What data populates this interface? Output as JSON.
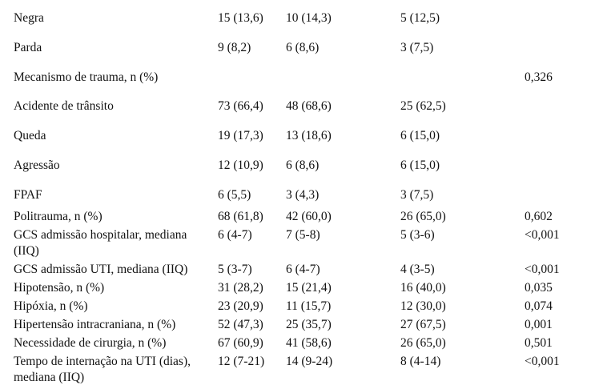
{
  "table": {
    "columns": [
      "row-label",
      "value-col1",
      "value-col2",
      "value-col3",
      "p-value"
    ],
    "rows": [
      {
        "label": "Negra",
        "values": [
          "15 (13,6)",
          "10 (14,3)",
          "5 (12,5)"
        ],
        "p": ""
      },
      {
        "label": "Parda",
        "values": [
          "9 (8,2)",
          "6 (8,6)",
          "3 (7,5)"
        ],
        "p": ""
      },
      {
        "label": "Mecanismo de trauma, n (%)",
        "values": [
          "",
          "",
          ""
        ],
        "p": "0,326"
      },
      {
        "label": "Acidente de trânsito",
        "values": [
          "73 (66,4)",
          "48 (68,6)",
          "25 (62,5)"
        ],
        "p": ""
      },
      {
        "label": "Queda",
        "values": [
          "19 (17,3)",
          "13 (18,6)",
          "6 (15,0)"
        ],
        "p": ""
      },
      {
        "label": "Agressão",
        "values": [
          "12 (10,9)",
          "6 (8,6)",
          "6 (15,0)"
        ],
        "p": ""
      },
      {
        "label": "FPAF",
        "values": [
          "6 (5,5)",
          "3 (4,3)",
          "3 (7,5)"
        ],
        "p": ""
      },
      {
        "label": "Politrauma, n (%)",
        "values": [
          "68 (61,8)",
          "42 (60,0)",
          "26 (65,0)"
        ],
        "p": "0,602"
      },
      {
        "label": "GCS admissão hospitalar, mediana (IIQ)",
        "values": [
          "6 (4-7)",
          "7 (5-8)",
          "5 (3-6)"
        ],
        "p": "<0,001"
      },
      {
        "label": "GCS admissão UTI, mediana (IIQ)",
        "values": [
          "5 (3-7)",
          "6 (4-7)",
          "4 (3-5)"
        ],
        "p": "<0,001"
      },
      {
        "label": "Hipotensão, n (%)",
        "values": [
          "31 (28,2)",
          "15 (21,4)",
          "16 (40,0)"
        ],
        "p": "0,035"
      },
      {
        "label": "Hipóxia, n (%)",
        "values": [
          "23 (20,9)",
          "11 (15,7)",
          "12 (30,0)"
        ],
        "p": "0,074"
      },
      {
        "label": "Hipertensão intracraniana, n (%)",
        "values": [
          "52 (47,3)",
          "25 (35,7)",
          "27 (67,5)"
        ],
        "p": "0,001"
      },
      {
        "label": "Necessidade de cirurgia, n (%)",
        "values": [
          "67 (60,9)",
          "41 (58,6)",
          "26 (65,0)"
        ],
        "p": "0,501"
      },
      {
        "label": "Tempo de internação na UTI (dias), mediana (IIQ)",
        "values": [
          "12 (7-21)",
          "14 (9-24)",
          "8 (4-14)"
        ],
        "p": "<0,001"
      }
    ]
  }
}
